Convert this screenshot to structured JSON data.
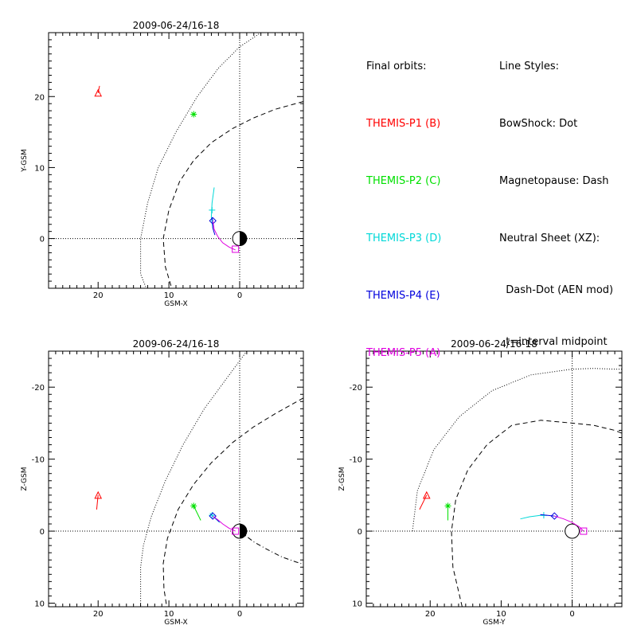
{
  "panels": [
    {
      "id": "xy",
      "title": "2009-06-24/16-18",
      "xlabel": "GSM-X",
      "ylabel": "Y-GSM",
      "xlim": [
        27,
        -9
      ],
      "ylim": [
        29,
        -7
      ],
      "xticks": [
        20,
        10,
        0
      ],
      "yticks": [
        0,
        10,
        20
      ]
    },
    {
      "id": "xz",
      "title": "2009-06-24/16-18",
      "xlabel": "GSM-X",
      "ylabel": "Z-GSM",
      "xlim": [
        27,
        -9
      ],
      "ylim": [
        -25,
        10.5
      ],
      "xticks": [
        20,
        10,
        0
      ],
      "yticks": [
        10,
        0,
        -10,
        -20
      ]
    },
    {
      "id": "yz",
      "title": "2009-06-24/16-18",
      "xlabel": "GSM-Y",
      "ylabel": "Z-GSM",
      "xlim": [
        29,
        -7
      ],
      "ylim": [
        -25,
        10.5
      ],
      "xticks": [
        20,
        10,
        0
      ],
      "yticks": [
        10,
        0,
        -10,
        -20
      ]
    }
  ],
  "legend": {
    "orbits_title": "Final orbits:",
    "probes": [
      {
        "label": "THEMIS-P1 (B)",
        "color": "#ff0000"
      },
      {
        "label": "THEMIS-P2 (C)",
        "color": "#00e000"
      },
      {
        "label": "THEMIS-P3 (D)",
        "color": "#00d8d8"
      },
      {
        "label": "THEMIS-P4 (E)",
        "color": "#0000dd"
      },
      {
        "label": "THEMIS-P5 (A)",
        "color": "#e000e0"
      }
    ],
    "styles_title": "Line Styles:",
    "styles": [
      "BowShock: Dot",
      "Magnetopause: Dash",
      "Neutral Sheet (XZ):",
      "  Dash-Dot (AEN mod)",
      "  t=interval midpoint"
    ]
  },
  "chart_data": {
    "type": "scatter",
    "boundaries": {
      "xy_bowshock": [
        [
          -3,
          29
        ],
        [
          0,
          27
        ],
        [
          3,
          24
        ],
        [
          6,
          20
        ],
        [
          9,
          15
        ],
        [
          11.5,
          10
        ],
        [
          13,
          5
        ],
        [
          14,
          0
        ],
        [
          14,
          -5
        ],
        [
          13.2,
          -7
        ]
      ],
      "xy_magnetopause": [
        [
          -9,
          19.3
        ],
        [
          -5,
          18.2
        ],
        [
          -2,
          17
        ],
        [
          1,
          15.5
        ],
        [
          4,
          13.5
        ],
        [
          6.5,
          11
        ],
        [
          8.5,
          8
        ],
        [
          10,
          4
        ],
        [
          10.8,
          0
        ],
        [
          10.5,
          -4
        ],
        [
          9.6,
          -7
        ]
      ],
      "xz_bowshock": [
        [
          -1,
          -25
        ],
        [
          2,
          -21
        ],
        [
          5,
          -17
        ],
        [
          8,
          -12
        ],
        [
          10.5,
          -7
        ],
        [
          12.5,
          -2
        ],
        [
          13.6,
          2
        ],
        [
          14,
          5
        ],
        [
          14,
          10.5
        ]
      ],
      "xz_magnetopause": [
        [
          -9,
          -18.5
        ],
        [
          -5,
          -16.3
        ],
        [
          -2,
          -14.5
        ],
        [
          1,
          -12.3
        ],
        [
          4,
          -9.5
        ],
        [
          6.5,
          -6.5
        ],
        [
          8.7,
          -3
        ],
        [
          10.2,
          1
        ],
        [
          10.8,
          4.5
        ],
        [
          10.7,
          8
        ],
        [
          10.3,
          10.5
        ]
      ],
      "xz_neutral_sheet": [
        [
          0,
          0
        ],
        [
          -2,
          1.5
        ],
        [
          -4,
          2.6
        ],
        [
          -6,
          3.6
        ],
        [
          -8,
          4.3
        ],
        [
          -9,
          4.6
        ]
      ],
      "yz_bowshock": [
        [
          22.5,
          0
        ],
        [
          21.8,
          -5.6
        ],
        [
          19.5,
          -11.3
        ],
        [
          15.9,
          -15.9
        ],
        [
          11.3,
          -19.5
        ],
        [
          5.8,
          -21.7
        ],
        [
          0,
          -22.5
        ],
        [
          -3,
          -22.6
        ],
        [
          -6,
          -22.5
        ],
        [
          -7,
          -22.5
        ]
      ],
      "yz_magnetopause": [
        [
          15.5,
          10.5
        ],
        [
          16.8,
          5
        ],
        [
          17,
          0
        ],
        [
          16.4,
          -4.4
        ],
        [
          14.7,
          -8.5
        ],
        [
          12,
          -12
        ],
        [
          8.5,
          -14.7
        ],
        [
          4.4,
          -15.4
        ],
        [
          0,
          -15
        ],
        [
          -3,
          -14.7
        ],
        [
          -6,
          -14
        ],
        [
          -7,
          -13.6
        ]
      ]
    },
    "orbits": {
      "xy": [
        {
          "probe": "P1",
          "points": [
            [
              19.8,
              21.5
            ],
            [
              20,
              20.5
            ]
          ],
          "marker": "triangle",
          "marker_at": [
            20,
            20.5
          ]
        },
        {
          "probe": "P2",
          "points": [
            [
              6.5,
              17.5
            ]
          ],
          "marker": "asterisk",
          "marker_at": [
            6.5,
            17.5
          ]
        },
        {
          "probe": "P3",
          "points": [
            [
              3.8,
              1.5
            ],
            [
              4,
              3
            ],
            [
              3.9,
              5
            ],
            [
              3.6,
              7.2
            ]
          ],
          "marker": "plus",
          "marker_at": [
            3.9,
            4
          ]
        },
        {
          "probe": "P4",
          "points": [
            [
              3.5,
              0.5
            ],
            [
              3.8,
              1.5
            ],
            [
              3.8,
              2.5
            ],
            [
              3.9,
              3
            ]
          ],
          "marker": "diamond",
          "marker_at": [
            3.8,
            2.5
          ]
        },
        {
          "probe": "P5",
          "points": [
            [
              0.6,
              -1.6
            ],
            [
              1.5,
              -1.2
            ],
            [
              2.4,
              -0.6
            ],
            [
              3.1,
              0.3
            ],
            [
              3.6,
              1.3
            ],
            [
              3.8,
              2.5
            ]
          ],
          "marker": "square",
          "marker_at": [
            0.6,
            -1.5
          ]
        }
      ],
      "xz": [
        {
          "probe": "P1",
          "points": [
            [
              20.2,
              -3
            ],
            [
              20,
              -5
            ]
          ],
          "marker": "triangle",
          "marker_at": [
            20,
            -5
          ]
        },
        {
          "probe": "P2",
          "points": [
            [
              5.5,
              -1.5
            ],
            [
              6,
              -2.5
            ],
            [
              6.5,
              -3.5
            ]
          ],
          "marker": "asterisk",
          "marker_at": [
            6.5,
            -3.5
          ]
        },
        {
          "probe": "P3",
          "points": [
            [
              2.8,
              -1.2
            ],
            [
              3.5,
              -1.8
            ],
            [
              4.2,
              -2.5
            ]
          ],
          "marker": "plus",
          "marker_at": [
            3.9,
            -2.2
          ]
        },
        {
          "probe": "P4",
          "points": [
            [
              2.9,
              -1.3
            ],
            [
              3.6,
              -2
            ]
          ],
          "marker": "diamond",
          "marker_at": [
            3.8,
            -2.1
          ]
        },
        {
          "probe": "P5",
          "points": [
            [
              0.6,
              0
            ],
            [
              1.5,
              -0.4
            ],
            [
              2.4,
              -1
            ],
            [
              3.1,
              -1.6
            ],
            [
              3.8,
              -2.1
            ]
          ],
          "marker": "square",
          "marker_at": [
            0.6,
            0
          ]
        }
      ],
      "yz": [
        {
          "probe": "P1",
          "points": [
            [
              21.5,
              -3
            ],
            [
              20.5,
              -5
            ]
          ],
          "marker": "triangle",
          "marker_at": [
            20.5,
            -5
          ]
        },
        {
          "probe": "P2",
          "points": [
            [
              17.5,
              -1.5
            ],
            [
              17.5,
              -3.5
            ]
          ],
          "marker": "asterisk",
          "marker_at": [
            17.5,
            -3.5
          ]
        },
        {
          "probe": "P3",
          "points": [
            [
              7.3,
              -1.7
            ],
            [
              6,
              -2
            ],
            [
              4.5,
              -2.2
            ],
            [
              3.5,
              -2.2
            ]
          ],
          "marker": "plus",
          "marker_at": [
            4,
            -2.2
          ]
        },
        {
          "probe": "P4",
          "points": [
            [
              4.5,
              -2.3
            ],
            [
              2.5,
              -2.1
            ]
          ],
          "marker": "diamond",
          "marker_at": [
            2.5,
            -2.1
          ]
        },
        {
          "probe": "P5",
          "points": [
            [
              2.5,
              -2.1
            ],
            [
              1.2,
              -1.7
            ],
            [
              0,
              -1.2
            ],
            [
              -1,
              -0.6
            ],
            [
              -1.6,
              0
            ]
          ],
          "marker": "square",
          "marker_at": [
            -1.6,
            0
          ]
        }
      ]
    }
  }
}
